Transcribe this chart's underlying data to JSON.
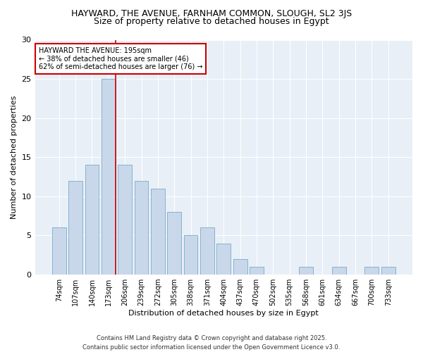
{
  "title1": "HAYWARD, THE AVENUE, FARNHAM COMMON, SLOUGH, SL2 3JS",
  "title2": "Size of property relative to detached houses in Egypt",
  "xlabel": "Distribution of detached houses by size in Egypt",
  "ylabel": "Number of detached properties",
  "categories": [
    "74sqm",
    "107sqm",
    "140sqm",
    "173sqm",
    "206sqm",
    "239sqm",
    "272sqm",
    "305sqm",
    "338sqm",
    "371sqm",
    "404sqm",
    "437sqm",
    "470sqm",
    "502sqm",
    "535sqm",
    "568sqm",
    "601sqm",
    "634sqm",
    "667sqm",
    "700sqm",
    "733sqm"
  ],
  "values": [
    6,
    12,
    14,
    25,
    14,
    12,
    11,
    8,
    5,
    6,
    4,
    2,
    1,
    0,
    0,
    1,
    0,
    1,
    0,
    1,
    1
  ],
  "bar_color": "#c8d8ea",
  "bar_edge_color": "#7aaac8",
  "vline_index": 3,
  "vline_color": "#cc0000",
  "annotation_text": "HAYWARD THE AVENUE: 195sqm\n← 38% of detached houses are smaller (46)\n62% of semi-detached houses are larger (76) →",
  "annotation_box_color": "#ffffff",
  "annotation_box_edge": "#cc0000",
  "ylim": [
    0,
    30
  ],
  "yticks": [
    0,
    5,
    10,
    15,
    20,
    25,
    30
  ],
  "footer1": "Contains HM Land Registry data © Crown copyright and database right 2025.",
  "footer2": "Contains public sector information licensed under the Open Government Licence v3.0.",
  "bg_color": "#ffffff",
  "plot_bg_color": "#e8eff7",
  "grid_color": "#ffffff",
  "title1_fontsize": 9,
  "title2_fontsize": 9,
  "axis_label_fontsize": 8,
  "tick_fontsize": 7,
  "annotation_fontsize": 7,
  "footer_fontsize": 6
}
